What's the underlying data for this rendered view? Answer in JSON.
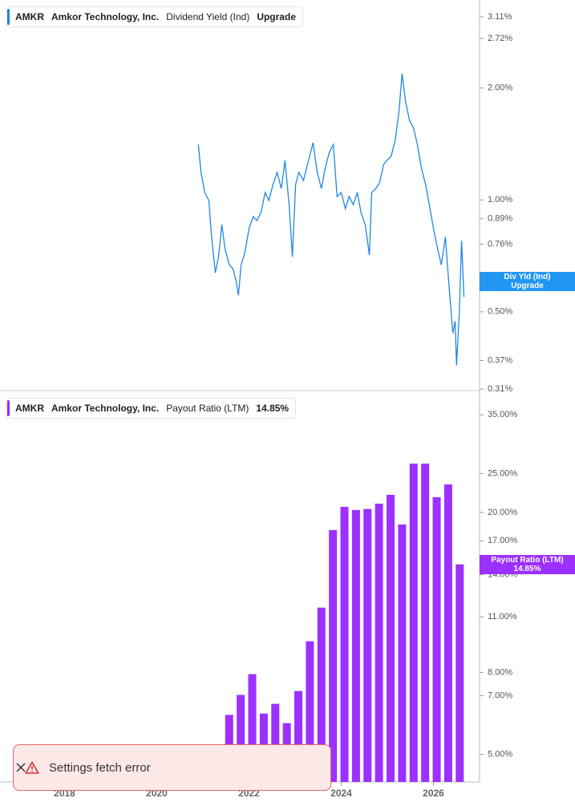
{
  "chart_data": [
    {
      "type": "line",
      "ticker": "AMKR",
      "company": "Amkor Technology, Inc.",
      "metric": "Dividend Yield (Ind)",
      "badge": "Upgrade",
      "flag": [
        "Div Yld (Ind)",
        "Upgrade"
      ],
      "color": "#1e88e5",
      "log_scale": true,
      "xlim": [
        2016.6,
        2027.0
      ],
      "ylim": [
        0.307,
        3.45
      ],
      "yticks": [
        {
          "value": 3.11,
          "label": "3.11%"
        },
        {
          "value": 2.72,
          "label": "2.72%"
        },
        {
          "value": 2.0,
          "label": "2.00%"
        },
        {
          "value": 1.0,
          "label": "1.00%"
        },
        {
          "value": 0.89,
          "label": "0.89%"
        },
        {
          "value": 0.76,
          "label": "0.76%"
        },
        {
          "value": 0.5,
          "label": "0.50%"
        },
        {
          "value": 0.37,
          "label": "0.37%"
        },
        {
          "value": 0.31,
          "label": "0.31%"
        }
      ],
      "x": [
        2020.9,
        2020.96,
        2021.04,
        2021.13,
        2021.18,
        2021.27,
        2021.34,
        2021.41,
        2021.48,
        2021.57,
        2021.65,
        2021.72,
        2021.77,
        2021.83,
        2021.91,
        2022.0,
        2022.09,
        2022.17,
        2022.26,
        2022.35,
        2022.43,
        2022.52,
        2022.61,
        2022.7,
        2022.78,
        2022.87,
        2022.94,
        2023.01,
        2023.08,
        2023.18,
        2023.29,
        2023.39,
        2023.48,
        2023.57,
        2023.65,
        2023.74,
        2023.83,
        2023.91,
        2024.0,
        2024.09,
        2024.17,
        2024.26,
        2024.35,
        2024.43,
        2024.52,
        2024.61,
        2024.66,
        2024.75,
        2024.83,
        2024.92,
        2024.99,
        2025.08,
        2025.17,
        2025.25,
        2025.32,
        2025.39,
        2025.48,
        2025.57,
        2025.65,
        2025.74,
        2025.83,
        2025.91,
        2026.0,
        2026.09,
        2026.17,
        2026.26,
        2026.31,
        2026.37,
        2026.42,
        2026.47,
        2026.5,
        2026.56,
        2026.61,
        2026.66
      ],
      "values": [
        1.41,
        1.185,
        1.047,
        0.996,
        0.816,
        0.637,
        0.703,
        0.858,
        0.739,
        0.669,
        0.653,
        0.606,
        0.554,
        0.669,
        0.721,
        0.837,
        0.902,
        0.88,
        0.924,
        1.047,
        0.996,
        1.1,
        1.185,
        1.073,
        1.277,
        0.971,
        0.703,
        1.1,
        1.185,
        1.128,
        1.277,
        1.425,
        1.185,
        1.073,
        1.215,
        1.342,
        1.41,
        1.021,
        1.047,
        0.947,
        1.021,
        0.971,
        1.047,
        0.924,
        0.858,
        0.71,
        1.047,
        1.073,
        1.111,
        1.246,
        1.277,
        1.309,
        1.446,
        1.721,
        2.185,
        1.855,
        1.637,
        1.558,
        1.41,
        1.215,
        1.1,
        0.971,
        0.837,
        0.739,
        0.669,
        0.796,
        0.653,
        0.522,
        0.438,
        0.472,
        0.359,
        0.496,
        0.777,
        0.548
      ]
    },
    {
      "type": "bar",
      "ticker": "AMKR",
      "company": "Amkor Technology, Inc.",
      "metric": "Payout Ratio (LTM)",
      "badge": "14.85%",
      "flag": [
        "Payout Ratio (LTM)",
        "14.85%"
      ],
      "color": "#9b30ff",
      "log_scale": true,
      "xlim": [
        2016.6,
        2027.0
      ],
      "xticks": [
        2018,
        2020,
        2022,
        2024,
        2026
      ],
      "ylim": [
        4.27,
        40.2
      ],
      "yticks": [
        {
          "value": 35,
          "label": "35.00%"
        },
        {
          "value": 25,
          "label": "25.00%"
        },
        {
          "value": 20,
          "label": "20.00%"
        },
        {
          "value": 17,
          "label": "17.00%"
        },
        {
          "value": 14,
          "label": "14.00%"
        },
        {
          "value": 11,
          "label": "11.00%"
        },
        {
          "value": 8,
          "label": "8.00%"
        },
        {
          "value": 7,
          "label": "7.00%"
        },
        {
          "value": 5,
          "label": "5.00%"
        }
      ],
      "x": [
        2021.57,
        2021.82,
        2022.07,
        2022.32,
        2022.57,
        2022.82,
        2023.07,
        2023.32,
        2023.57,
        2023.82,
        2024.07,
        2024.32,
        2024.57,
        2024.82,
        2025.07,
        2025.32,
        2025.57,
        2025.82,
        2026.07,
        2026.32,
        2026.57
      ],
      "values": [
        6.27,
        7.03,
        7.92,
        6.32,
        6.68,
        5.98,
        7.19,
        9.56,
        11.59,
        18.08,
        20.65,
        20.28,
        20.4,
        21.03,
        22.12,
        18.67,
        26.45,
        26.45,
        21.82,
        23.48,
        14.85
      ]
    }
  ],
  "toast": {
    "message": "Settings fetch error"
  }
}
